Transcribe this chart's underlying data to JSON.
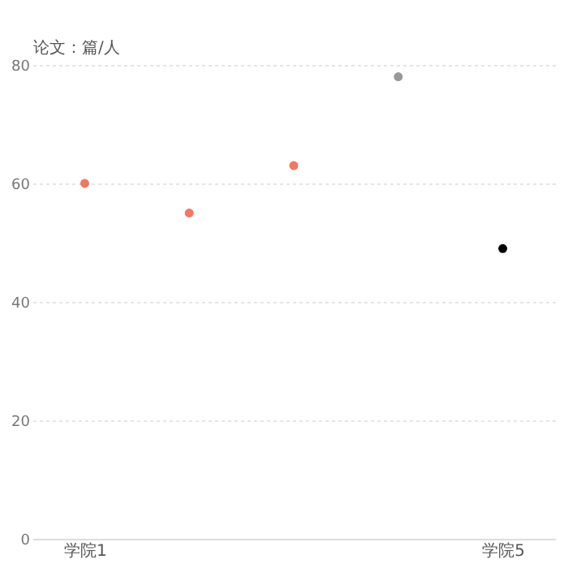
{
  "chart_data": {
    "type": "scatter",
    "ylabel": "论文：篇/人",
    "categories": [
      "学院1",
      null,
      null,
      null,
      "学院5"
    ],
    "values": [
      60,
      55,
      63,
      78,
      49
    ],
    "colors": [
      "#f47560",
      "#f47560",
      "#f47560",
      "#999999",
      "#000000"
    ],
    "ylim": [
      0,
      80
    ],
    "yticks": [
      0,
      20,
      40,
      60,
      80
    ],
    "grid": "y",
    "marker": "circle"
  }
}
